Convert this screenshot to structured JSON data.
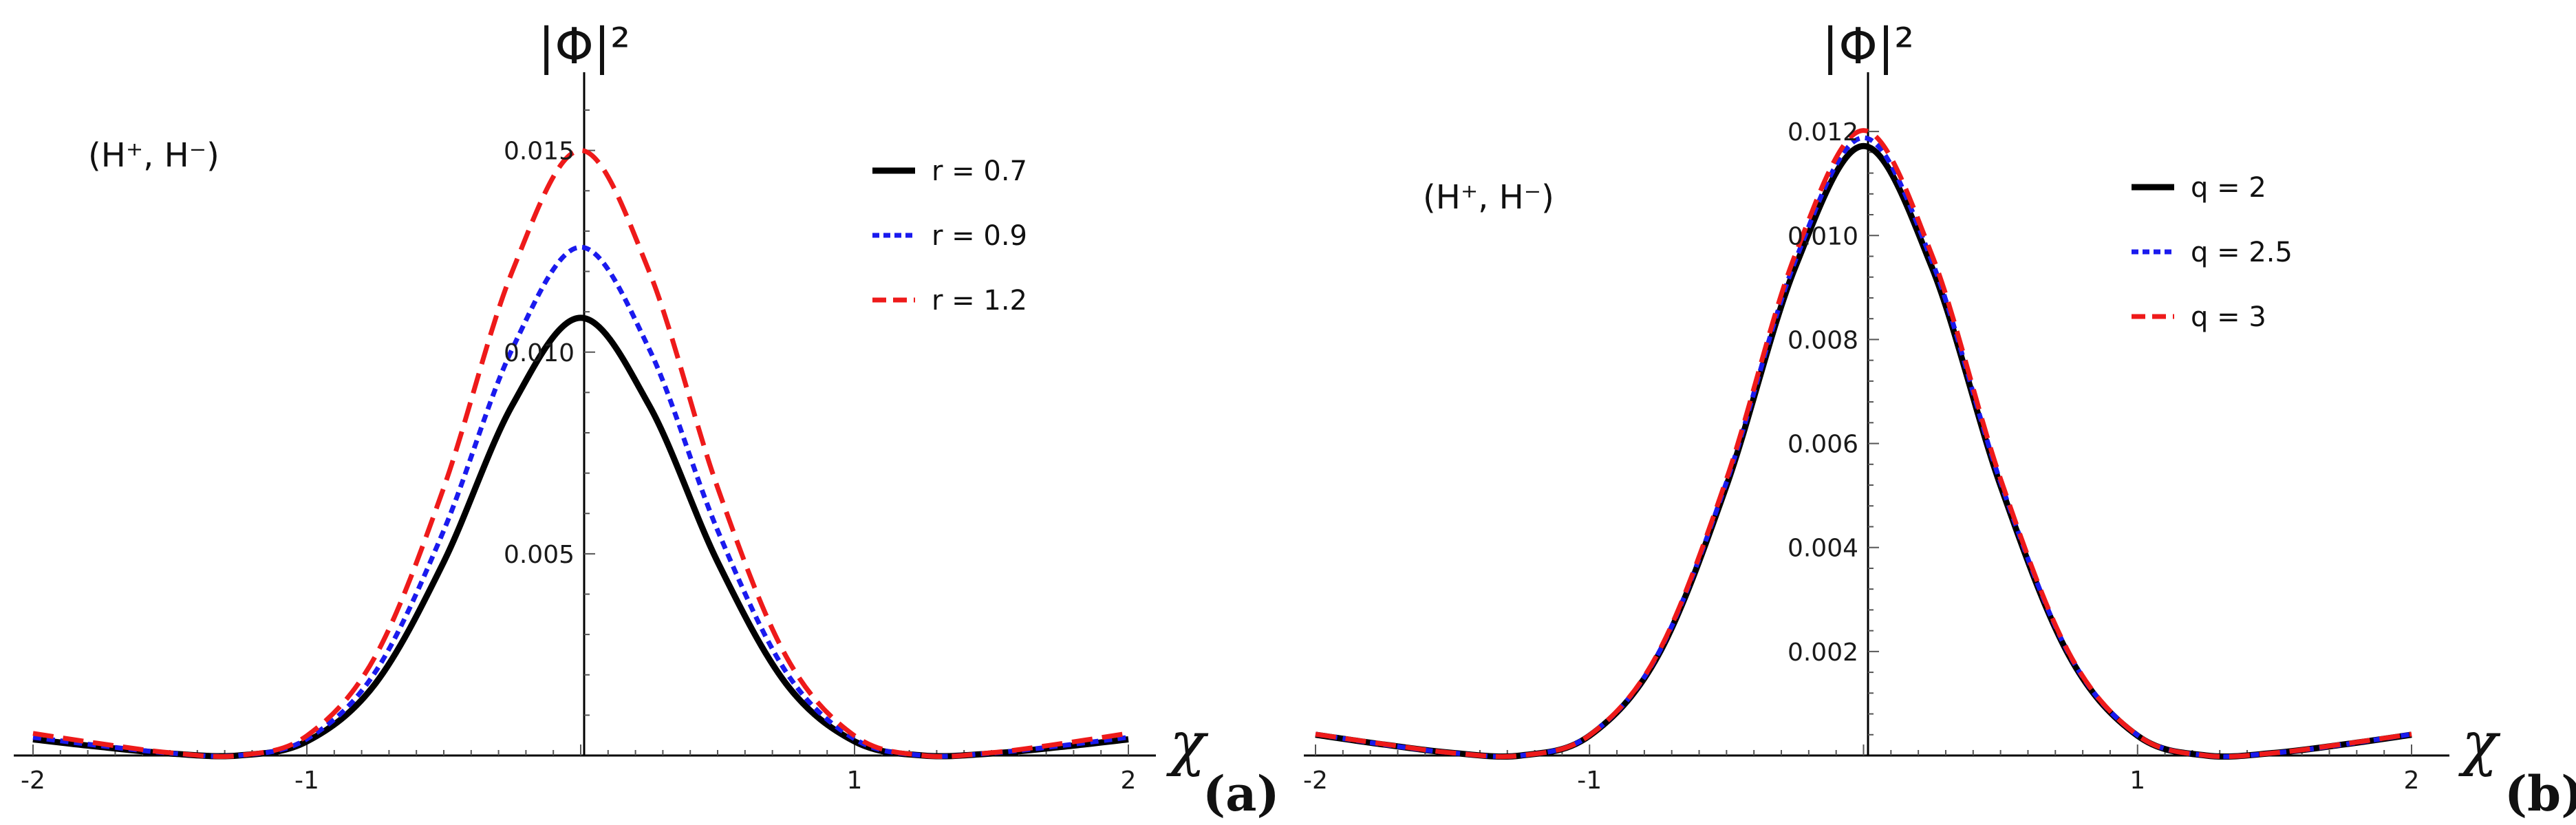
{
  "chart_data": [
    {
      "type": "line",
      "panel_label": "(a)",
      "annotation": "(H⁺, H⁻)",
      "ylabel": "|Φ|²",
      "xlabel": "χ",
      "xlim": [
        -2,
        2
      ],
      "ylim": [
        0,
        0.016
      ],
      "xticks": [
        -2,
        -1,
        1,
        2
      ],
      "xtick_labels": [
        "-2",
        "-1",
        "1",
        "2"
      ],
      "yticks": [
        0.005,
        0.01,
        0.015
      ],
      "ytick_labels": [
        "0.005",
        "0.010",
        "0.015"
      ],
      "legend_position": "top-right",
      "x": [
        -2,
        -1.75,
        -1.5,
        -1.25,
        -1,
        -0.75,
        -0.5,
        -0.25,
        0,
        0.25,
        0.5,
        0.75,
        1,
        1.25,
        1.5,
        1.75,
        2
      ],
      "series": [
        {
          "name": "r = 0.7",
          "color": "#000000",
          "dash": "solid",
          "values": [
            0.0004,
            0.00021,
            5e-05,
            0.0,
            0.00035,
            0.00178,
            0.0048,
            0.00868,
            0.01085,
            0.00868,
            0.0048,
            0.00178,
            0.00035,
            0.0,
            5e-05,
            0.00021,
            0.0004
          ]
        },
        {
          "name": "r = 0.9",
          "color": "#1a1aee",
          "dash": "dotted",
          "values": [
            0.00045,
            0.00024,
            6e-05,
            0.0,
            0.00041,
            0.00207,
            0.00558,
            0.01008,
            0.0126,
            0.01008,
            0.00558,
            0.00207,
            0.00041,
            0.0,
            6e-05,
            0.00024,
            0.00045
          ]
        },
        {
          "name": "r = 1.2",
          "color": "#ee1a1a",
          "dash": "dashed",
          "values": [
            0.00055,
            0.00029,
            7e-05,
            0.0,
            0.00049,
            0.00246,
            0.00664,
            0.012,
            0.015,
            0.012,
            0.00664,
            0.00246,
            0.00049,
            0.0,
            7e-05,
            0.00029,
            0.00055
          ]
        }
      ]
    },
    {
      "type": "line",
      "panel_label": "(b)",
      "annotation": "(H⁺, H⁻)",
      "ylabel": "|Φ|²",
      "xlabel": "χ",
      "xlim": [
        -2,
        2
      ],
      "ylim": [
        0,
        0.0122
      ],
      "xticks": [
        -2,
        -1,
        1,
        2
      ],
      "xtick_labels": [
        "-2",
        "-1",
        "1",
        "2"
      ],
      "yticks": [
        0.002,
        0.004,
        0.006,
        0.008,
        0.01,
        0.012
      ],
      "ytick_labels": [
        "0.002",
        "0.004",
        "0.006",
        "0.008",
        "0.010",
        "0.012"
      ],
      "legend_position": "top-right",
      "x": [
        -2,
        -1.75,
        -1.5,
        -1.25,
        -1,
        -0.75,
        -0.5,
        -0.25,
        0,
        0.25,
        0.5,
        0.75,
        1,
        1.25,
        1.5,
        1.75,
        2
      ],
      "series": [
        {
          "name": "q = 2",
          "color": "#000000",
          "dash": "solid",
          "values": [
            0.0004,
            0.00021,
            5e-05,
            0.0,
            0.00038,
            0.00192,
            0.00519,
            0.00938,
            0.01172,
            0.00938,
            0.00519,
            0.00192,
            0.00038,
            0.0,
            5e-05,
            0.00021,
            0.0004
          ]
        },
        {
          "name": "q = 2.5",
          "color": "#1a1aee",
          "dash": "dotted",
          "values": [
            0.00041,
            0.00021,
            5e-05,
            0.0,
            0.00039,
            0.00195,
            0.00526,
            0.0095,
            0.01188,
            0.0095,
            0.00526,
            0.00195,
            0.00039,
            0.0,
            5e-05,
            0.00021,
            0.00041
          ]
        },
        {
          "name": "q = 3",
          "color": "#ee1a1a",
          "dash": "dashed",
          "values": [
            0.00041,
            0.00022,
            5e-05,
            0.0,
            0.00039,
            0.00197,
            0.00532,
            0.00962,
            0.01202,
            0.00962,
            0.00532,
            0.00197,
            0.00039,
            0.0,
            5e-05,
            0.00022,
            0.00041
          ]
        }
      ]
    }
  ]
}
